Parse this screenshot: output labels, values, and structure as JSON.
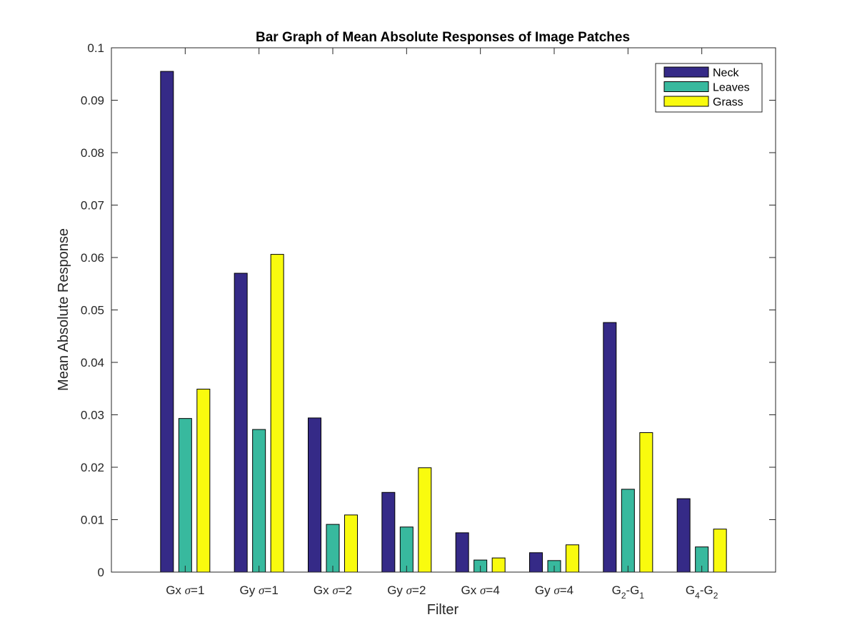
{
  "chart_data": {
    "type": "bar",
    "title": "Bar Graph of Mean Absolute Responses of Image Patches",
    "xlabel": "Filter",
    "ylabel": "Mean Absolute Response",
    "ylim": [
      0,
      0.1
    ],
    "yticks": [
      "0",
      "0.01",
      "0.02",
      "0.03",
      "0.04",
      "0.05",
      "0.06",
      "0.07",
      "0.08",
      "0.09",
      "0.1"
    ],
    "categories": [
      {
        "pre": "Gx ",
        "sym": "σ",
        "post": "=1"
      },
      {
        "pre": "Gy ",
        "sym": "σ",
        "post": "=1"
      },
      {
        "pre": "Gx ",
        "sym": "σ",
        "post": "=2"
      },
      {
        "pre": "Gy ",
        "sym": "σ",
        "post": "=2"
      },
      {
        "pre": "Gx ",
        "sym": "σ",
        "post": "=4"
      },
      {
        "pre": "Gy ",
        "sym": "σ",
        "post": "=4"
      },
      {
        "pre": "G",
        "sub1": "2",
        "mid": "-G",
        "sub2": "1"
      },
      {
        "pre": "G",
        "sub1": "4",
        "mid": "-G",
        "sub2": "2"
      }
    ],
    "series": [
      {
        "name": "Neck",
        "color": "#352a87",
        "values": [
          0.0955,
          0.057,
          0.0294,
          0.0152,
          0.0075,
          0.0037,
          0.0476,
          0.014
        ]
      },
      {
        "name": "Leaves",
        "color": "#38b99e",
        "values": [
          0.0293,
          0.0272,
          0.0091,
          0.0086,
          0.0023,
          0.0022,
          0.0158,
          0.0048
        ]
      },
      {
        "name": "Grass",
        "color": "#f9fb0e",
        "values": [
          0.0349,
          0.0606,
          0.0109,
          0.0199,
          0.0027,
          0.0052,
          0.0266,
          0.0082
        ]
      }
    ],
    "grid": false,
    "legend": "top-right"
  }
}
